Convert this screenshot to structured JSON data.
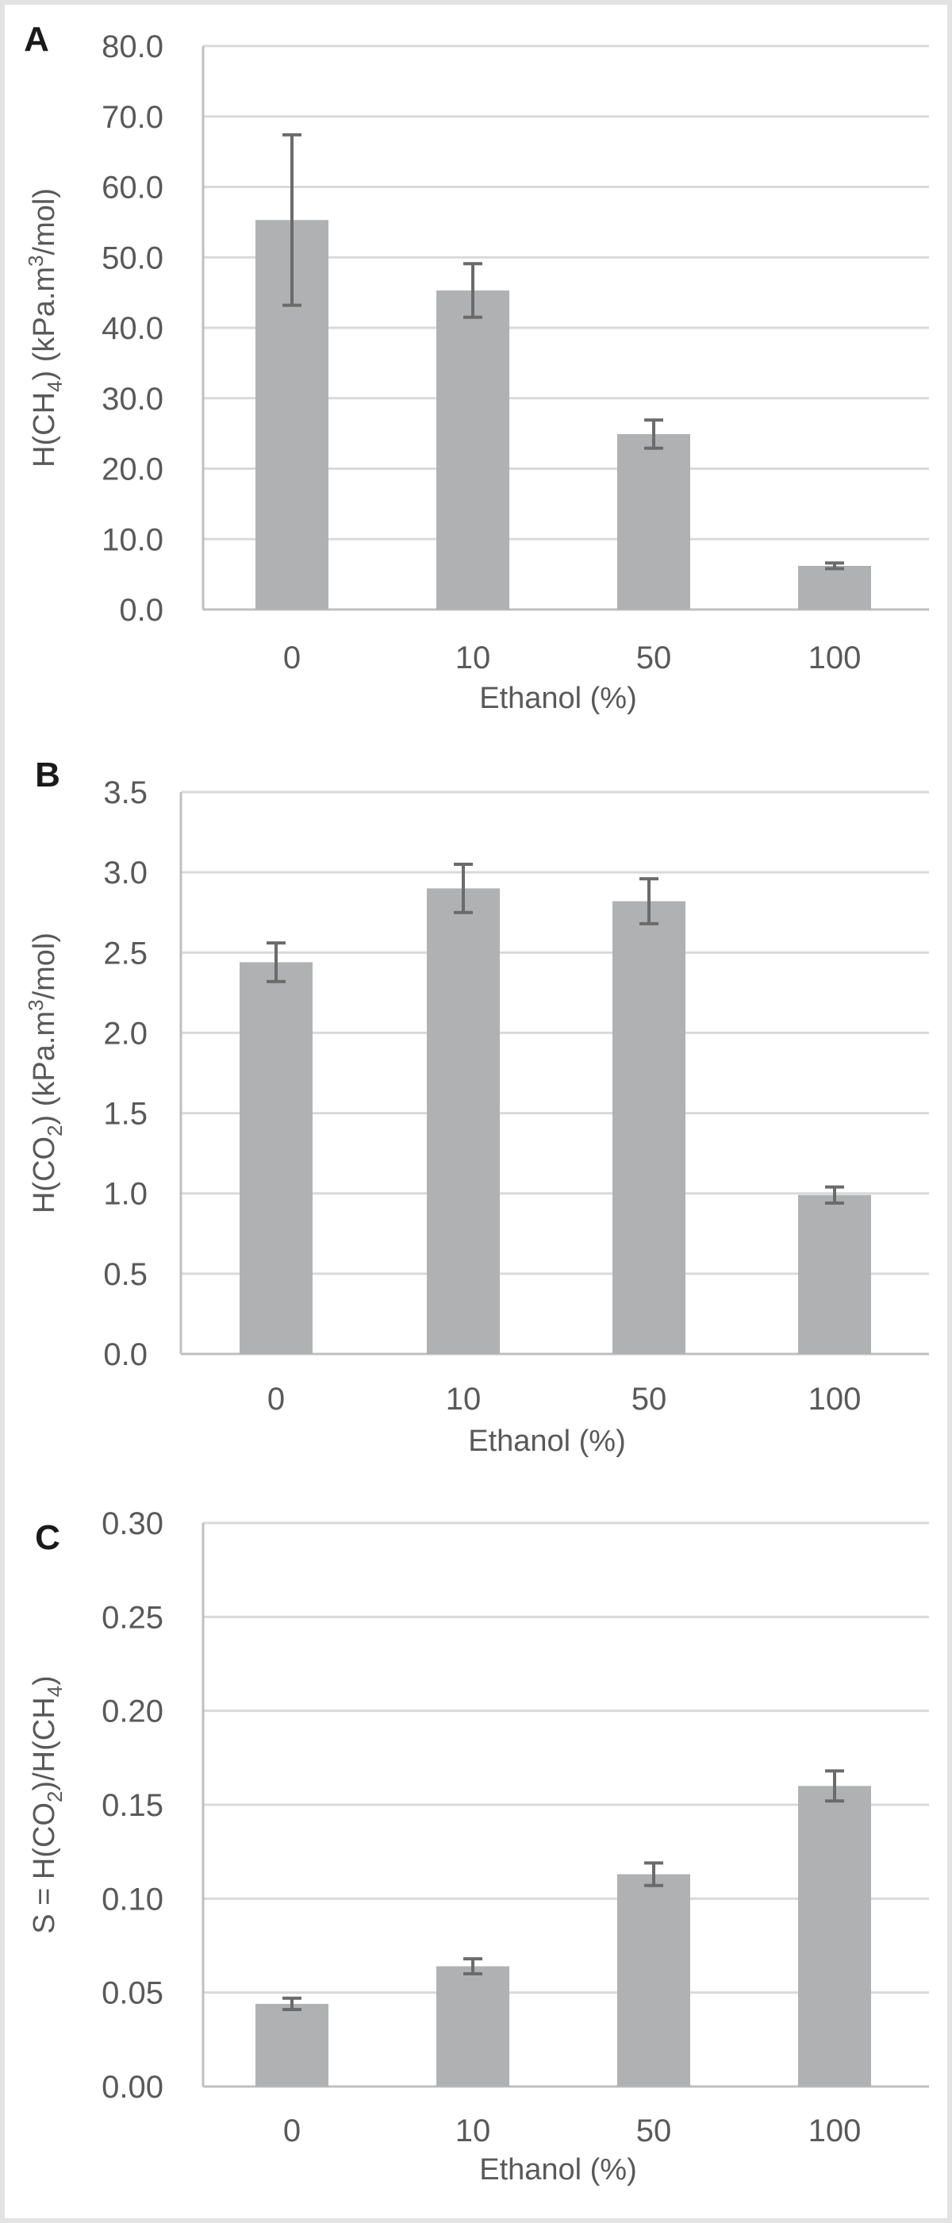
{
  "figure": {
    "bar_color": "#b0b1b2",
    "error_color": "#6b6b6b",
    "grid_color": "#d9d9d9",
    "text_color": "#595959"
  },
  "chart_data": [
    {
      "type": "bar",
      "panel": "A",
      "categories": [
        "0",
        "10",
        "50",
        "100"
      ],
      "values": [
        55.3,
        45.3,
        24.9,
        6.2
      ],
      "errors": [
        12.1,
        3.8,
        2.0,
        0.4
      ],
      "xlabel": "Ethanol (%)",
      "ylabel": {
        "pre": "H(CH",
        "sub": "4",
        "mid": ") (kPa.m",
        "sup": "3",
        "post": "/mol)"
      },
      "ylim": [
        0,
        80
      ],
      "yticks": [
        "0.0",
        "10.0",
        "20.0",
        "30.0",
        "40.0",
        "50.0",
        "60.0",
        "70.0",
        "80.0"
      ],
      "grid": true,
      "legend": "none"
    },
    {
      "type": "bar",
      "panel": "B",
      "categories": [
        "0",
        "10",
        "50",
        "100"
      ],
      "values": [
        2.44,
        2.9,
        2.82,
        0.99
      ],
      "errors": [
        0.12,
        0.15,
        0.14,
        0.05
      ],
      "xlabel": "Ethanol (%)",
      "ylabel": {
        "pre": "H(CO",
        "sub": "2",
        "mid": ") (kPa.m",
        "sup": "3",
        "post": "/mol)"
      },
      "ylim": [
        0,
        3.5
      ],
      "yticks": [
        "0.0",
        "0.5",
        "1.0",
        "1.5",
        "2.0",
        "2.5",
        "3.0",
        "3.5"
      ],
      "grid": true,
      "legend": "none"
    },
    {
      "type": "bar",
      "panel": "C",
      "categories": [
        "0",
        "10",
        "50",
        "100"
      ],
      "values": [
        0.044,
        0.064,
        0.113,
        0.16
      ],
      "errors": [
        0.003,
        0.004,
        0.006,
        0.008
      ],
      "xlabel": "Ethanol (%)",
      "ylabel": {
        "pre": "S = H(CO",
        "sub": "2",
        "mid": ")/H(CH",
        "sup": "",
        "sub2": "4",
        "post": ")"
      },
      "ylim": [
        0,
        0.3
      ],
      "yticks": [
        "0.00",
        "0.05",
        "0.10",
        "0.15",
        "0.20",
        "0.25",
        "0.30"
      ],
      "grid": true,
      "legend": "none"
    }
  ]
}
